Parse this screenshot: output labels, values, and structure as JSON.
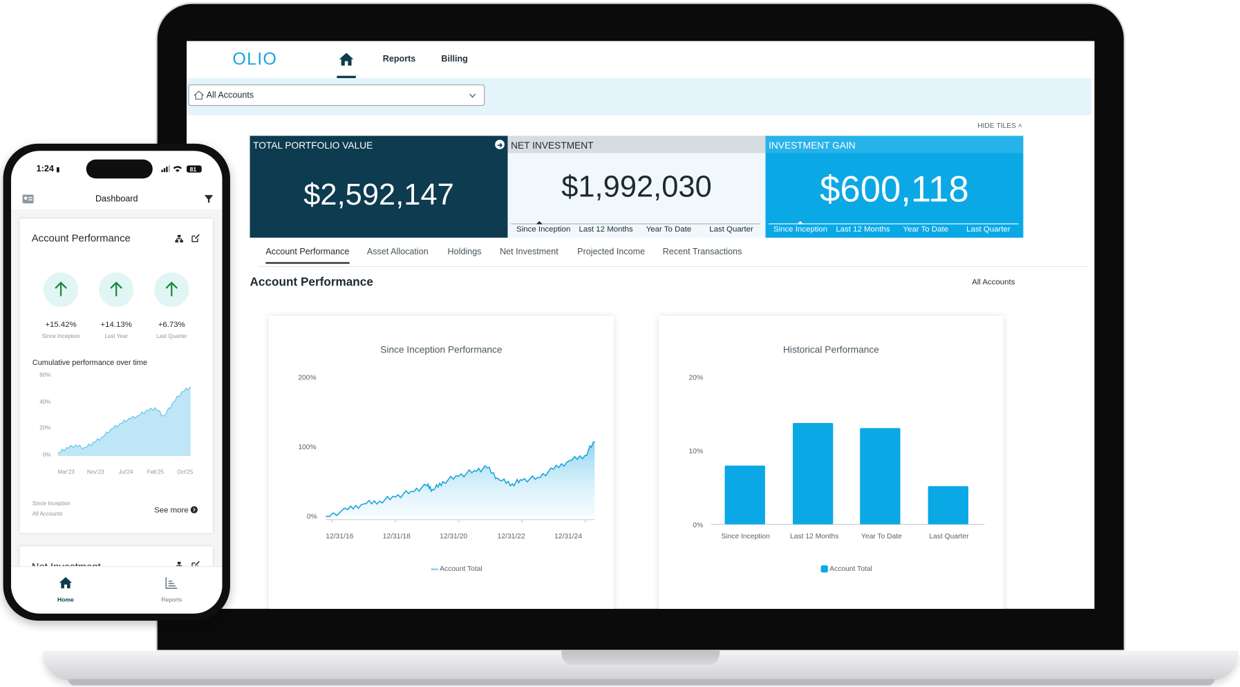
{
  "app": {
    "logo": "OLIO",
    "nav": {
      "reports": "Reports",
      "billing": "Billing"
    },
    "account_selector": {
      "value": "All Accounts"
    },
    "hide_tiles": "HIDE TILES"
  },
  "tiles": [
    {
      "label": "TOTAL PORTFOLIO VALUE",
      "value": "$2,592,147"
    },
    {
      "label": "NET INVESTMENT",
      "value": "$1,992,030",
      "periods": [
        "Since Inception",
        "Last 12 Months",
        "Year To Date",
        "Last Quarter"
      ]
    },
    {
      "label": "INVESTMENT GAIN",
      "value": "$600,118",
      "periods": [
        "Since Inception",
        "Last 12 Months",
        "Year To Date",
        "Last Quarter"
      ]
    }
  ],
  "tabs": [
    "Account Performance",
    "Asset Allocation",
    "Holdings",
    "Net Investment",
    "Projected Income",
    "Recent Transactions"
  ],
  "section": {
    "title": "Account Performance",
    "scope": "All Accounts"
  },
  "charts": {
    "inception": {
      "title": "Since Inception Performance",
      "y_ticks": [
        "200%",
        "100%",
        "0%"
      ],
      "x_ticks": [
        "12/31/16",
        "12/31/18",
        "12/31/20",
        "12/31/22",
        "12/31/24"
      ],
      "legend": "Account Total"
    },
    "historical": {
      "title": "Historical Performance",
      "y_ticks": [
        "20%",
        "10%",
        "0%"
      ],
      "categories": [
        "Since Inception",
        "Last 12 Months",
        "Year To Date",
        "Last Quarter"
      ],
      "legend": "Account Total"
    }
  },
  "chart_data": [
    {
      "type": "area",
      "title": "Since Inception Performance",
      "x_ticks": [
        "12/31/16",
        "12/31/18",
        "12/31/20",
        "12/31/22",
        "12/31/24"
      ],
      "ylim": [
        0,
        200
      ],
      "series": [
        {
          "name": "Account Total",
          "x": [
            2016.8,
            2017.5,
            2018.0,
            2018.5,
            2019.0,
            2019.5,
            2020.0,
            2020.2,
            2020.5,
            2021.0,
            2021.5,
            2021.9,
            2022.3,
            2022.7,
            2023.0,
            2023.5,
            2024.0,
            2024.5,
            2025.0,
            2025.3
          ],
          "values": [
            0,
            10,
            18,
            22,
            28,
            36,
            44,
            38,
            50,
            58,
            66,
            70,
            52,
            47,
            52,
            56,
            68,
            80,
            88,
            108
          ]
        }
      ],
      "color": "#1aa4dc"
    },
    {
      "type": "bar",
      "title": "Historical Performance",
      "categories": [
        "Since Inception",
        "Last 12 Months",
        "Year To Date",
        "Last Quarter"
      ],
      "ylim": [
        0,
        20
      ],
      "series": [
        {
          "name": "Account Total",
          "values": [
            8,
            13.8,
            13.1,
            5.2
          ]
        }
      ],
      "color": "#0ba8e6"
    },
    {
      "type": "area",
      "title": "Cumulative performance over time",
      "x_ticks": [
        "Mar'23",
        "Nov'23",
        "Jul'24",
        "Feb'25",
        "Oct'25"
      ],
      "y_ticks": [
        "60%",
        "40%",
        "20%",
        "0%"
      ],
      "ylim": [
        0,
        60
      ],
      "series": [
        {
          "x": [
            2022.9,
            2023.1,
            2023.3,
            2023.5,
            2023.7,
            2023.9,
            2024.1,
            2024.3,
            2024.5,
            2024.7,
            2024.9,
            2025.1,
            2025.3,
            2025.5,
            2025.7,
            2025.9
          ],
          "values": [
            2,
            6,
            8,
            6,
            10,
            14,
            20,
            24,
            28,
            30,
            34,
            36,
            30,
            40,
            48,
            52
          ]
        }
      ],
      "color": "#5cc4e8"
    }
  ],
  "phone": {
    "time": "1:24",
    "battery": "81",
    "title": "Dashboard",
    "card1": {
      "title": "Account Performance",
      "metrics": [
        {
          "value": "+15.42%",
          "label": "Since Inception"
        },
        {
          "value": "+14.13%",
          "label": "Last Year"
        },
        {
          "value": "+6.73%",
          "label": "Last Quarter"
        }
      ],
      "chart_title": "Cumulative performance over time",
      "footer1": "Since Inception",
      "footer2": "All Accounts",
      "see_more": "See more"
    },
    "card2": {
      "title": "Net Investment"
    },
    "tabbar": {
      "home": "Home",
      "reports": "Reports"
    }
  }
}
